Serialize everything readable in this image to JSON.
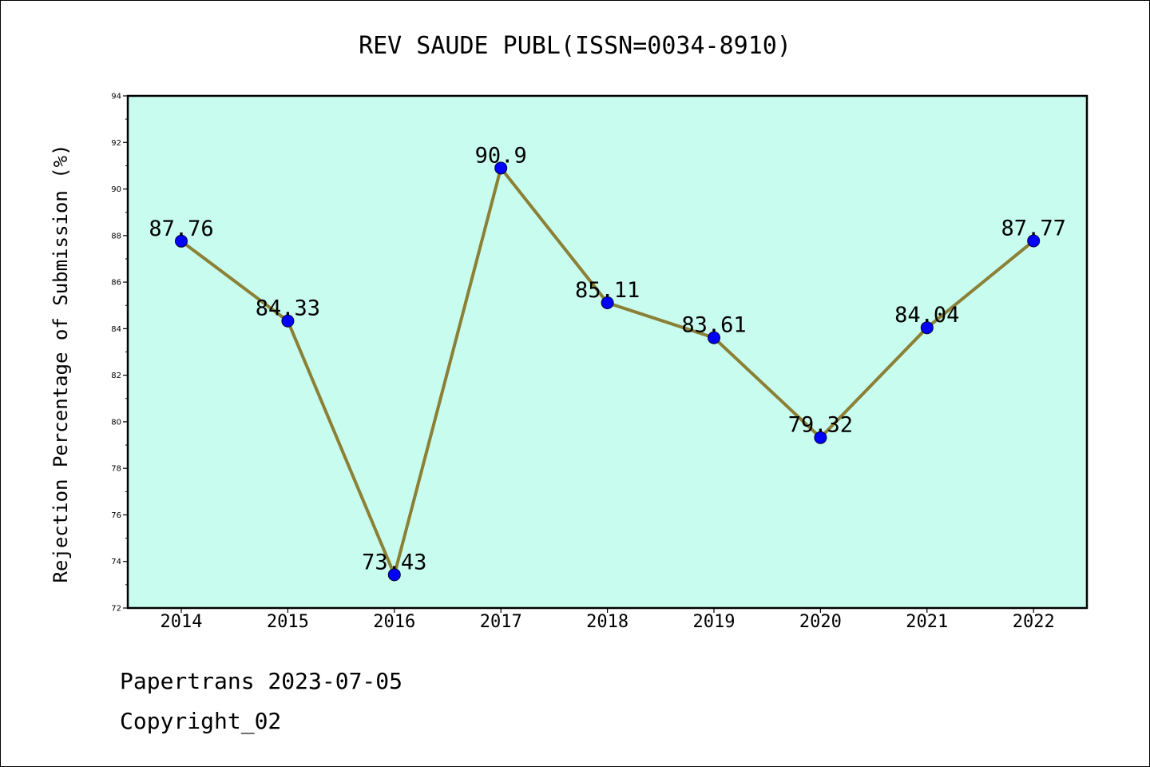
{
  "chart_data": {
    "type": "line",
    "title": "REV SAUDE PUBL(ISSN=0034-8910)",
    "xlabel": "",
    "ylabel": "Rejection Percentage of Submission (%)",
    "categories": [
      "2014",
      "2015",
      "2016",
      "2017",
      "2018",
      "2019",
      "2020",
      "2021",
      "2022"
    ],
    "series": [
      {
        "values": [
          87.76,
          84.33,
          73.43,
          90.9,
          85.11,
          83.61,
          79.32,
          84.04,
          87.77
        ],
        "data_labels": [
          "87.76",
          "84.33",
          "73.43",
          "90.9",
          "85.11",
          "83.61",
          "79.32",
          "84.04",
          "87.77"
        ]
      }
    ],
    "ylim": [
      72,
      94
    ],
    "yticks": [
      "72",
      "74",
      "76",
      "78",
      "80",
      "82",
      "84",
      "86",
      "88",
      "90",
      "92",
      "94"
    ],
    "grid": false,
    "colors": {
      "plot_background": "#c8fcee",
      "line": "#8b8035",
      "marker": "#0000ff"
    }
  },
  "footer": {
    "line1": "Papertrans 2023-07-05",
    "line2": "Copyright_02"
  }
}
